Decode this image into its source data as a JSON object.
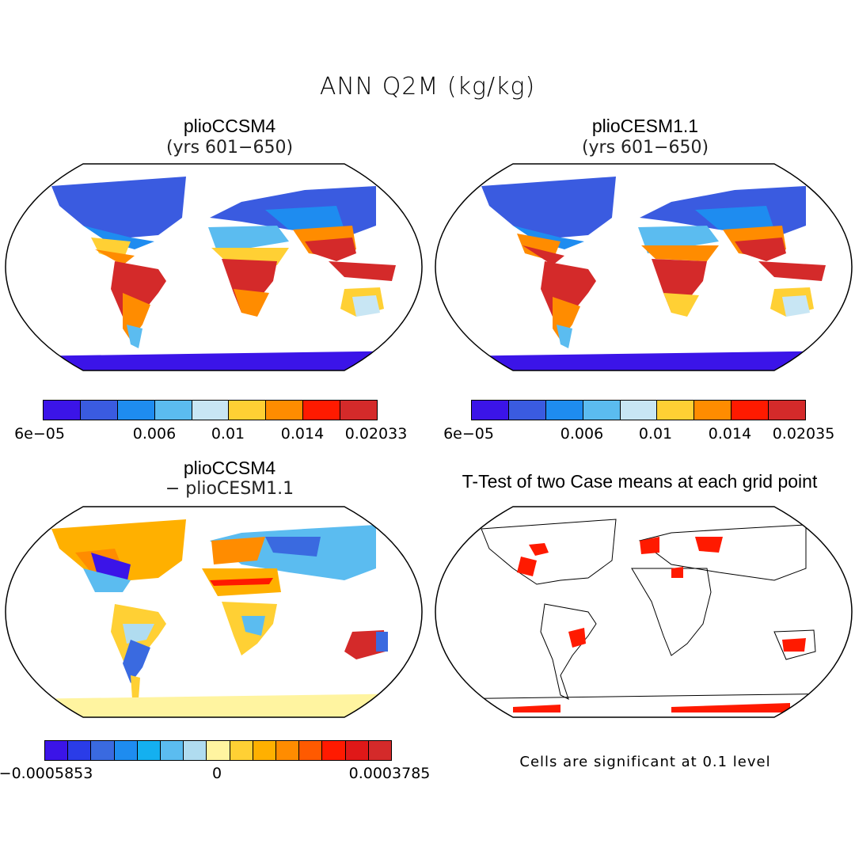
{
  "title": "ANN Q2M (kg/kg)",
  "panels": {
    "p1": {
      "title": "plioCCSM4",
      "subtitle": "(yrs 601−650)"
    },
    "p2": {
      "title": "plioCESM1.1",
      "subtitle": "(yrs 601−650)"
    },
    "p3": {
      "title": "plioCCSM4",
      "subtitle": "− plioCESM1.1"
    },
    "p4": {
      "title": "T-Test of two Case means at each grid point"
    }
  },
  "colorbars": {
    "cb1": {
      "colors": [
        "#3b14e8",
        "#3a5be0",
        "#1e8cf0",
        "#5bbcf0",
        "#c8e6f4",
        "#ffd034",
        "#ff8c00",
        "#ff1a00",
        "#d42a2a"
      ],
      "labels": [
        "6e−05",
        "0.006",
        "0.01",
        "0.014",
        "0.02033"
      ]
    },
    "cb2": {
      "colors": [
        "#3b14e8",
        "#3a5be0",
        "#1e8cf0",
        "#5bbcf0",
        "#c8e6f4",
        "#ffd034",
        "#ff8c00",
        "#ff1a00",
        "#d42a2a"
      ],
      "labels": [
        "6e−05",
        "0.006",
        "0.01",
        "0.014",
        "0.02035"
      ]
    },
    "cb3": {
      "colors": [
        "#3b14e8",
        "#2a3ce8",
        "#3a6ae0",
        "#1e8cf0",
        "#14b0f0",
        "#5bbcf0",
        "#b0dcf0",
        "#fff4a0",
        "#ffd034",
        "#ffb000",
        "#ff8c00",
        "#ff5a00",
        "#ff1a00",
        "#e01818",
        "#d42a2a"
      ],
      "labels": [
        "−0.0005853",
        "0",
        "0.0003785"
      ]
    }
  },
  "note": "Cells are significant at 0.1 level"
}
